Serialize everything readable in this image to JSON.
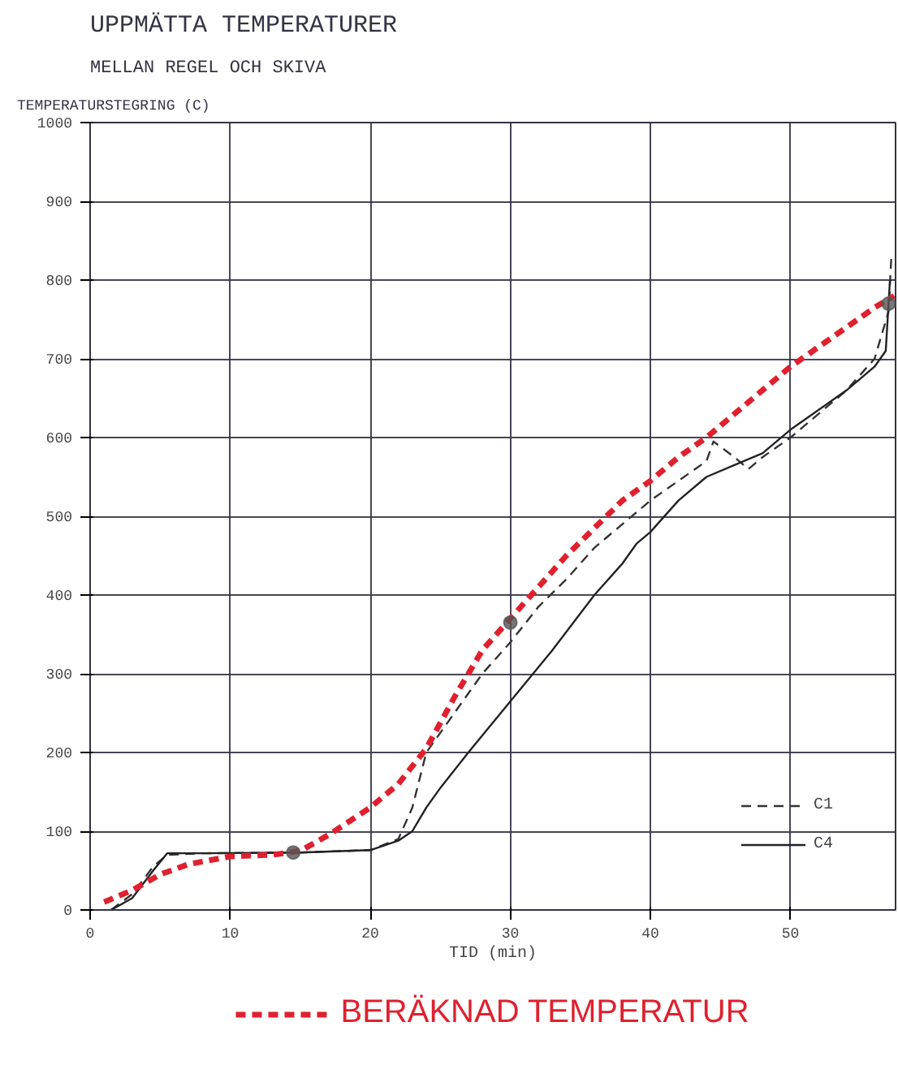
{
  "chart_data": {
    "type": "line",
    "title": "UPPMÄTTA TEMPERATURER",
    "subtitle": "MELLAN REGEL OCH SKIVA",
    "xlabel": "TID (min)",
    "ylabel": "TEMPERATURSTEGRING (C)",
    "xlim": [
      0,
      57.5
    ],
    "xticks": [
      0,
      10,
      20,
      30,
      40,
      50
    ],
    "ylim": [
      0,
      1000
    ],
    "yticks": [
      0,
      100,
      200,
      300,
      400,
      500,
      600,
      700,
      800,
      900,
      1000
    ],
    "grid": true,
    "legend": "bottom right",
    "series": [
      {
        "name": "C1",
        "color": "#333333",
        "line_style": "dashed",
        "x": [
          1.5,
          3,
          4.5,
          5.5,
          8,
          15,
          20,
          22,
          23,
          24,
          26,
          28,
          30,
          32,
          34,
          36,
          38,
          40,
          42,
          44,
          44.5,
          46,
          47,
          48,
          50,
          52,
          54,
          56,
          57,
          57.2
        ],
        "values": [
          0,
          20,
          55,
          70,
          72,
          73,
          76,
          90,
          130,
          200,
          250,
          300,
          340,
          385,
          420,
          460,
          490,
          520,
          545,
          570,
          595,
          575,
          560,
          575,
          600,
          630,
          660,
          700,
          760,
          830
        ]
      },
      {
        "name": "C4",
        "color": "#222222",
        "line_style": "solid",
        "x": [
          1.5,
          3,
          4.5,
          5.5,
          8,
          15,
          20,
          22,
          23,
          24,
          25,
          27,
          30,
          33,
          36,
          38,
          39,
          40,
          42,
          44,
          46,
          48,
          49,
          50,
          52,
          54,
          56,
          56.8,
          57.1
        ],
        "values": [
          0,
          15,
          50,
          72,
          72,
          73,
          76,
          88,
          100,
          130,
          155,
          200,
          265,
          330,
          400,
          440,
          465,
          480,
          520,
          550,
          565,
          580,
          595,
          610,
          635,
          660,
          690,
          710,
          800
        ]
      },
      {
        "name": "BERÄKNAD TEMPERATUR",
        "color": "#e0202e",
        "line_style": "dashed",
        "x": [
          1,
          3,
          5,
          7,
          10,
          13,
          15,
          17,
          20,
          22,
          24,
          26,
          28,
          30,
          32,
          34,
          36,
          38,
          40,
          42,
          44,
          46,
          48,
          50,
          52,
          54,
          56,
          57.4
        ],
        "values": [
          10,
          25,
          45,
          58,
          68,
          70,
          75,
          95,
          130,
          160,
          205,
          270,
          330,
          370,
          410,
          450,
          485,
          520,
          545,
          575,
          600,
          630,
          660,
          690,
          715,
          740,
          765,
          780
        ]
      },
      {
        "type": "scatter",
        "color": "#555555",
        "x": [
          14.5,
          30,
          57
        ],
        "values": [
          73,
          365,
          770
        ]
      }
    ]
  }
}
